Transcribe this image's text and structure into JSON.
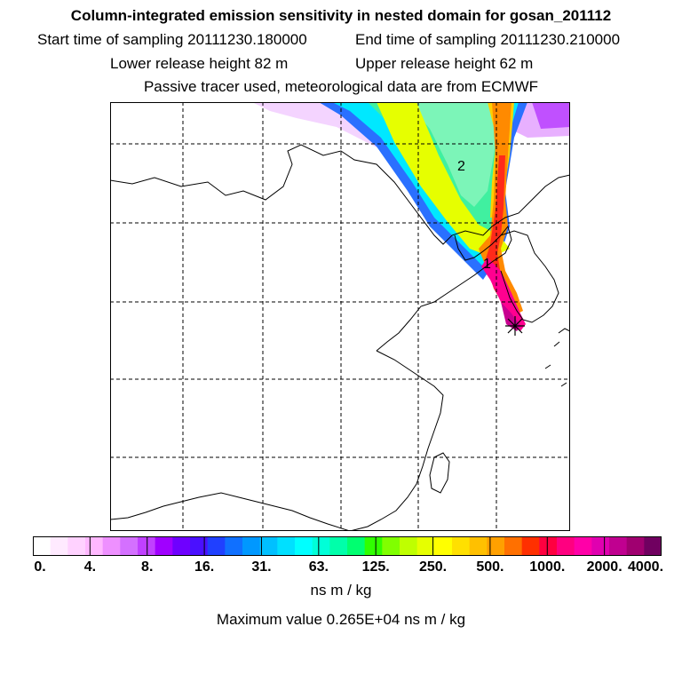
{
  "title": "Column-integrated emission sensitivity in nested domain for gosan_201112",
  "sampling": {
    "start_label": "Start time of sampling 20111230.180000",
    "end_label": "End time of sampling 20111230.210000"
  },
  "release": {
    "lower_label": "Lower release height   82 m",
    "upper_label": "Upper release height   62 m"
  },
  "subtitle": "Passive tracer used, meteorological data are from ECMWF",
  "map": {
    "labels": [
      "1",
      "2"
    ],
    "release_marker_icon": "asterisk-star-icon"
  },
  "colorbar": {
    "colors": [
      "#ffffff",
      "#ffeaff",
      "#ffd2ff",
      "#ffb8ff",
      "#ee90ff",
      "#d470ff",
      "#c040ff",
      "#a000ff",
      "#6f00ff",
      "#4a10ff",
      "#2040ff",
      "#1070ff",
      "#0098ff",
      "#00c0ff",
      "#00e0ff",
      "#00ffff",
      "#00ffd8",
      "#00ffaa",
      "#00ff70",
      "#30ff00",
      "#80ff00",
      "#bfff00",
      "#e6ff00",
      "#ffff00",
      "#ffe000",
      "#ffc000",
      "#ffa000",
      "#ff7000",
      "#ff3000",
      "#ff0040",
      "#ff0080",
      "#ff00a8",
      "#e000b0",
      "#c00090",
      "#a00070",
      "#700060"
    ],
    "tick_labels": [
      "0.",
      "4.",
      "8.",
      "16.",
      "31.",
      "63.",
      "125.",
      "250.",
      "500.",
      "1000.",
      "2000.",
      "4000."
    ],
    "units": "ns m / kg"
  },
  "maximum": "Maximum value  0.265E+04 ns m / kg"
}
